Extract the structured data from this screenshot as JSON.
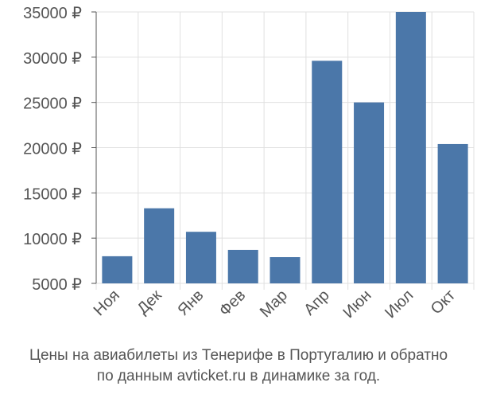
{
  "chart_data": {
    "type": "bar",
    "categories": [
      "Ноя",
      "Дек",
      "Янв",
      "Фев",
      "Мар",
      "Апр",
      "Июн",
      "Июл",
      "Окт"
    ],
    "values": [
      8000,
      13300,
      10700,
      8700,
      7900,
      29600,
      25000,
      35000,
      20400
    ],
    "ylim": [
      5000,
      35000
    ],
    "yticks": [
      5000,
      10000,
      15000,
      20000,
      25000,
      30000,
      35000
    ],
    "ytick_labels": [
      "5000 ₽",
      "10000 ₽",
      "15000 ₽",
      "20000 ₽",
      "25000 ₽",
      "30000 ₽",
      "35000 ₽"
    ],
    "grid": true,
    "colors": {
      "bar": "#4b77a9",
      "grid": "#e0e0e0",
      "axis": "#555555",
      "text": "#555555"
    }
  },
  "caption": {
    "line1": "Цены на авиабилеты из Тенерифе в Португалию и обратно",
    "line2": "по данным avticket.ru в динамике за год."
  }
}
